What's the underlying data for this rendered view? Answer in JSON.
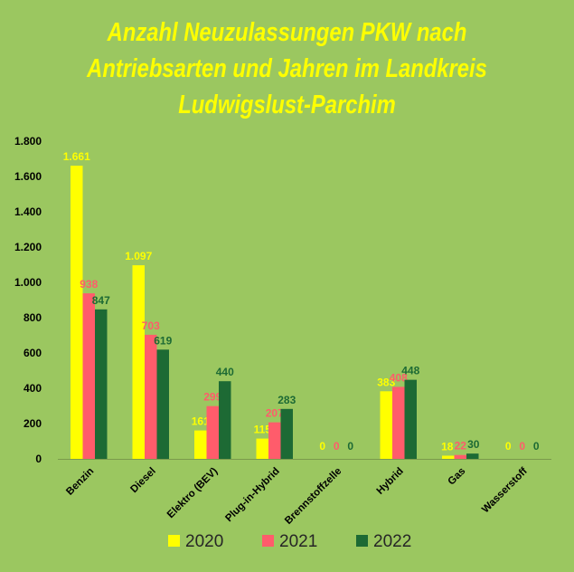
{
  "chart_data": {
    "type": "bar",
    "title_lines": [
      "Anzahl Neuzulassungen PKW nach",
      "Antriebsarten und Jahren im Landkreis",
      "Ludwigslust-Parchim"
    ],
    "categories": [
      "Benzin",
      "Diesel",
      "Elektro (BEV)",
      "Plug-in-Hybrid",
      "Brennstoffzelle",
      "Hybrid",
      "Gas",
      "Wasserstoff"
    ],
    "series": [
      {
        "name": "2020",
        "color": "#ffff00",
        "values": [
          1661,
          1097,
          161,
          115,
          0,
          383,
          18,
          0
        ],
        "labels": [
          "1.661",
          "1.097",
          "161",
          "115",
          "0",
          "383",
          "18",
          "0"
        ]
      },
      {
        "name": "2021",
        "color": "#ff5c6b",
        "values": [
          938,
          703,
          299,
          207,
          0,
          408,
          22,
          0
        ],
        "labels": [
          "938",
          "703",
          "299",
          "207",
          "0",
          "408",
          "22",
          "0"
        ]
      },
      {
        "name": "2022",
        "color": "#1d6a34",
        "values": [
          847,
          619,
          440,
          283,
          0,
          448,
          30,
          0
        ],
        "labels": [
          "847",
          "619",
          "440",
          "283",
          "0",
          "448",
          "30",
          "0"
        ]
      }
    ],
    "ylim": [
      0,
      1800
    ],
    "yticks": [
      0,
      200,
      400,
      600,
      800,
      1000,
      1200,
      1400,
      1600,
      1800
    ],
    "ytick_labels": [
      "0",
      "200",
      "400",
      "600",
      "800",
      "1.000",
      "1.200",
      "1.400",
      "1.600",
      "1.800"
    ],
    "xlabel": "",
    "ylabel": "",
    "grid": false,
    "legend_position": "bottom",
    "colors": {
      "background": "#9bc760",
      "title": "#ffff00",
      "axis_text": "#000000"
    }
  }
}
